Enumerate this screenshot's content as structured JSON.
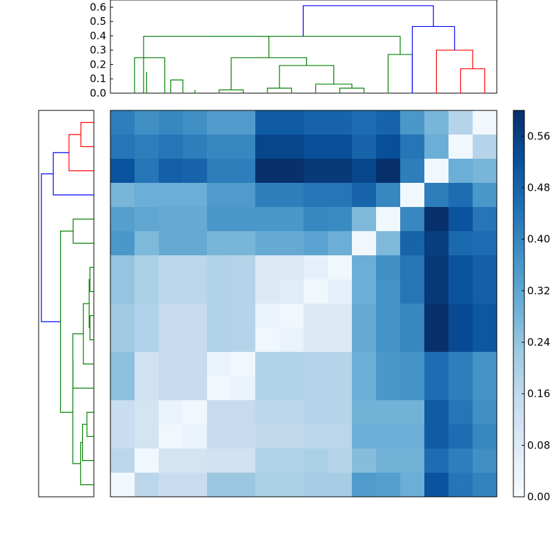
{
  "chart_data": [
    {
      "type": "dendrogram",
      "orientation": "top",
      "leaves": 16,
      "ylim": [
        0,
        0.65
      ],
      "yticks": [
        "0.0",
        "0.1",
        "0.2",
        "0.3",
        "0.4",
        "0.5",
        "0.6"
      ],
      "colors": {
        "green": "#008000",
        "red": "#ff0000",
        "blue": "#0000ff"
      },
      "links": [
        {
          "a": [
            0,
            1
          ],
          "b": [
            0,
            1
          ],
          "h": 0.149,
          "color": "green"
        },
        {
          "a": [
            2,
            3
          ],
          "b": [
            2,
            3
          ],
          "h": 0.023,
          "color": "green"
        },
        {
          "a": [
            1,
            2
          ],
          "b": [
            2.5,
            2.5
          ],
          "h": 0.092,
          "color": "green"
        },
        {
          "a": [
            0,
            0.5
          ],
          "b": [
            1,
            1.75
          ],
          "h": 0.247,
          "color": "green"
        },
        {
          "a": [
            4,
            4
          ],
          "b": [
            5,
            5
          ],
          "h": 0.023,
          "color": "green"
        },
        {
          "a": [
            6,
            6
          ],
          "b": [
            7,
            7
          ],
          "h": 0.035,
          "color": "green"
        },
        {
          "a": [
            9,
            9
          ],
          "b": [
            10,
            10
          ],
          "h": 0.035,
          "color": "green"
        },
        {
          "a": [
            8,
            8
          ],
          "b": [
            9.5,
            9.5
          ],
          "h": 0.063,
          "color": "green"
        },
        {
          "a": [
            6.5,
            6.5
          ],
          "b": [
            8.75,
            8.75
          ],
          "h": 0.193,
          "color": "green"
        },
        {
          "a": [
            4.5,
            4.5
          ],
          "b": [
            7.625,
            7.625
          ],
          "h": 0.247,
          "color": "green"
        },
        {
          "a": [
            0.875,
            0.875
          ],
          "b": [
            6.0625,
            6.0625
          ],
          "h": 0.397,
          "color": "green"
        },
        {
          "a": [
            11,
            11
          ],
          "b": [
            12,
            12
          ],
          "h": 0.27,
          "color": "green"
        },
        {
          "a": [
            3.46875,
            3.46875
          ],
          "b": [
            11.5,
            11.5
          ],
          "h": 0.397,
          "color": "green"
        },
        {
          "a": [
            14,
            14
          ],
          "b": [
            15,
            15
          ],
          "h": 0.17,
          "color": "red"
        },
        {
          "a": [
            13,
            13
          ],
          "b": [
            14.5,
            14.5
          ],
          "h": 0.3,
          "color": "red"
        },
        {
          "a": [
            12,
            12
          ],
          "b": [
            13.75,
            13.75
          ],
          "h": 0.465,
          "color": "blue"
        },
        {
          "a": [
            7.484,
            7.484
          ],
          "b": [
            12.875,
            12.875
          ],
          "h": 0.61,
          "color": "blue"
        }
      ]
    },
    {
      "type": "dendrogram",
      "orientation": "left",
      "leaves": 16,
      "colors": {
        "green": "#008000",
        "red": "#ff0000",
        "blue": "#0000ff"
      },
      "links": [
        {
          "a": [
            0,
            0
          ],
          "b": [
            1,
            1
          ],
          "h": 0.047,
          "color": "red"
        },
        {
          "a": [
            0.5,
            0.5
          ],
          "b": [
            2,
            2
          ],
          "h": 0.09,
          "color": "red"
        },
        {
          "a": [
            1.25,
            1.25
          ],
          "b": [
            3,
            3
          ],
          "h": 0.147,
          "color": "blue"
        },
        {
          "a": [
            4,
            4
          ],
          "b": [
            5,
            5
          ],
          "h": 0.075,
          "color": "green"
        },
        {
          "a": [
            6,
            6
          ],
          "b": [
            7,
            7
          ],
          "h": 0.014,
          "color": "green"
        },
        {
          "a": [
            8,
            8
          ],
          "b": [
            9,
            9
          ],
          "h": 0.014,
          "color": "green"
        },
        {
          "a": [
            6.5,
            6.5
          ],
          "b": [
            8.5,
            8.5
          ],
          "h": 0.017,
          "color": "green"
        },
        {
          "a": [
            7.5,
            7.5
          ],
          "b": [
            10,
            10
          ],
          "h": 0.038,
          "color": "green"
        },
        {
          "a": [
            8.75,
            8.75
          ],
          "b": [
            11,
            11
          ],
          "h": 0.076,
          "color": "green"
        },
        {
          "a": [
            12,
            12
          ],
          "b": [
            13,
            13
          ],
          "h": 0.025,
          "color": "green"
        },
        {
          "a": [
            12.5,
            12.5
          ],
          "b": [
            14,
            14
          ],
          "h": 0.041,
          "color": "green"
        },
        {
          "a": [
            13.25,
            13.25
          ],
          "b": [
            15,
            15
          ],
          "h": 0.048,
          "color": "green"
        },
        {
          "a": [
            9.875,
            9.875
          ],
          "b": [
            14.125,
            14.125
          ],
          "h": 0.076,
          "color": "green"
        },
        {
          "a": [
            4.5,
            4.5
          ],
          "b": [
            12,
            12
          ],
          "h": 0.121,
          "color": "green"
        },
        {
          "a": [
            2.125,
            2.125
          ],
          "b": [
            8.25,
            8.25
          ],
          "h": 0.19,
          "color": "blue"
        }
      ]
    },
    {
      "type": "heatmap",
      "rows": 16,
      "cols": 16,
      "cmap": "Blues",
      "vmin": 0.0,
      "vmax": 0.6,
      "colorbar_ticks": [
        "0.00",
        "0.08",
        "0.16",
        "0.24",
        "0.32",
        "0.40",
        "0.48",
        "0.56"
      ],
      "values": [
        [
          0.42,
          0.38,
          0.4,
          0.38,
          0.35,
          0.35,
          0.5,
          0.5,
          0.48,
          0.48,
          0.46,
          0.48,
          0.36,
          0.28,
          0.18,
          0.02
        ],
        [
          0.44,
          0.42,
          0.44,
          0.42,
          0.4,
          0.4,
          0.55,
          0.55,
          0.53,
          0.53,
          0.48,
          0.53,
          0.44,
          0.3,
          0.02,
          0.18
        ],
        [
          0.52,
          0.44,
          0.49,
          0.48,
          0.42,
          0.42,
          0.6,
          0.6,
          0.58,
          0.58,
          0.55,
          0.6,
          0.42,
          0.02,
          0.3,
          0.28
        ],
        [
          0.28,
          0.3,
          0.3,
          0.3,
          0.35,
          0.35,
          0.42,
          0.42,
          0.44,
          0.44,
          0.48,
          0.4,
          0.02,
          0.42,
          0.46,
          0.36
        ],
        [
          0.34,
          0.32,
          0.31,
          0.31,
          0.36,
          0.36,
          0.36,
          0.36,
          0.4,
          0.39,
          0.27,
          0.02,
          0.4,
          0.6,
          0.52,
          0.44
        ],
        [
          0.36,
          0.27,
          0.31,
          0.31,
          0.28,
          0.28,
          0.31,
          0.31,
          0.33,
          0.3,
          0.02,
          0.27,
          0.48,
          0.57,
          0.47,
          0.46
        ],
        [
          0.24,
          0.2,
          0.17,
          0.17,
          0.19,
          0.18,
          0.08,
          0.08,
          0.05,
          0.02,
          0.3,
          0.38,
          0.44,
          0.58,
          0.52,
          0.49
        ],
        [
          0.24,
          0.2,
          0.17,
          0.17,
          0.19,
          0.18,
          0.08,
          0.07,
          0.02,
          0.05,
          0.3,
          0.37,
          0.44,
          0.58,
          0.52,
          0.49
        ],
        [
          0.22,
          0.19,
          0.15,
          0.15,
          0.19,
          0.18,
          0.04,
          0.02,
          0.08,
          0.08,
          0.31,
          0.37,
          0.4,
          0.6,
          0.54,
          0.51
        ],
        [
          0.22,
          0.19,
          0.15,
          0.15,
          0.19,
          0.18,
          0.02,
          0.04,
          0.08,
          0.08,
          0.31,
          0.37,
          0.4,
          0.6,
          0.54,
          0.51
        ],
        [
          0.25,
          0.12,
          0.15,
          0.15,
          0.04,
          0.02,
          0.19,
          0.19,
          0.18,
          0.18,
          0.3,
          0.36,
          0.37,
          0.46,
          0.42,
          0.37
        ],
        [
          0.25,
          0.12,
          0.15,
          0.15,
          0.02,
          0.04,
          0.19,
          0.19,
          0.18,
          0.18,
          0.3,
          0.36,
          0.37,
          0.46,
          0.42,
          0.37
        ],
        [
          0.14,
          0.11,
          0.04,
          0.02,
          0.15,
          0.15,
          0.17,
          0.17,
          0.18,
          0.18,
          0.29,
          0.29,
          0.29,
          0.5,
          0.44,
          0.38
        ],
        [
          0.14,
          0.11,
          0.02,
          0.04,
          0.15,
          0.15,
          0.16,
          0.16,
          0.17,
          0.17,
          0.3,
          0.3,
          0.3,
          0.5,
          0.46,
          0.4
        ],
        [
          0.17,
          0.02,
          0.11,
          0.11,
          0.12,
          0.12,
          0.19,
          0.19,
          0.2,
          0.18,
          0.26,
          0.29,
          0.29,
          0.46,
          0.42,
          0.38
        ],
        [
          0.02,
          0.17,
          0.14,
          0.14,
          0.23,
          0.23,
          0.2,
          0.2,
          0.21,
          0.21,
          0.35,
          0.34,
          0.3,
          0.52,
          0.44,
          0.41
        ]
      ]
    }
  ]
}
